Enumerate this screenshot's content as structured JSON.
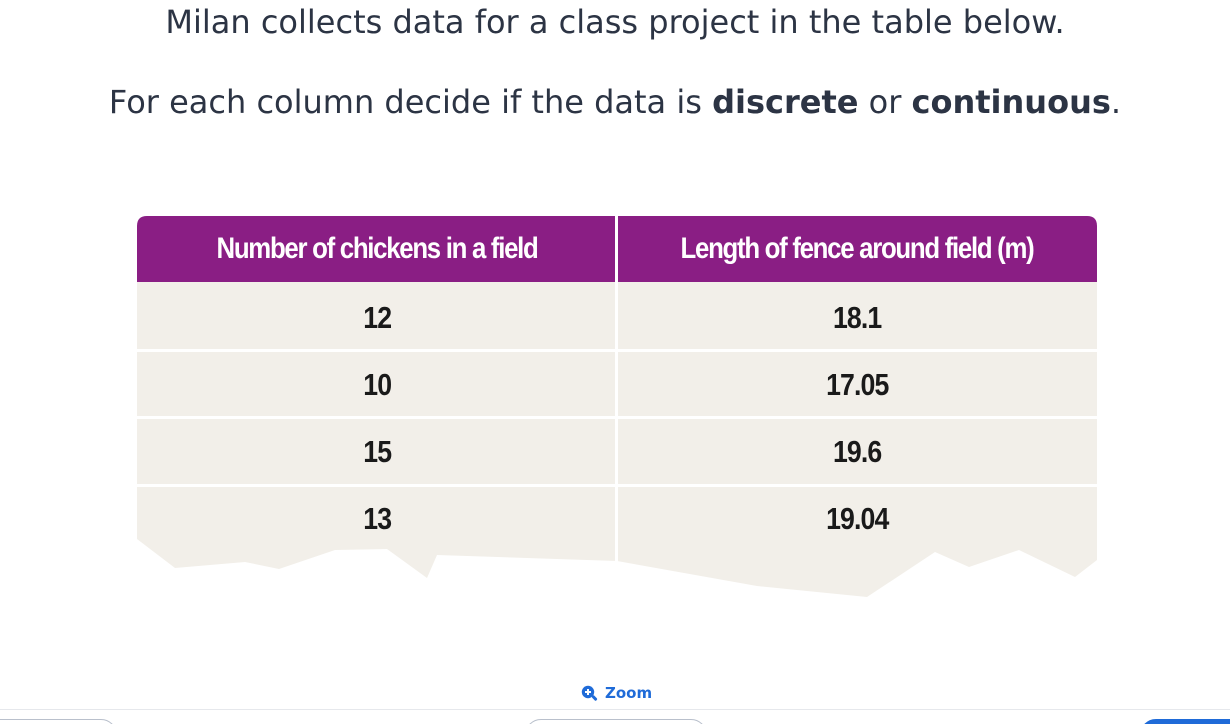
{
  "question": {
    "line1": "Milan collects data for a class project in the table below.",
    "line2_prefix": "For each column decide if the data is ",
    "line2_bold1": "discrete",
    "line2_middle": " or ",
    "line2_bold2": "continuous",
    "line2_suffix": "."
  },
  "table": {
    "header_color": "#8a1e84",
    "row_color": "#f2efe9",
    "headers": [
      "Number of  chickens in a field",
      "Length of fence around field (m)"
    ],
    "rows": [
      [
        "12",
        "18.1"
      ],
      [
        "10",
        "17.05"
      ],
      [
        "15",
        "19.6"
      ],
      [
        "13",
        "19.04"
      ]
    ]
  },
  "footer": {
    "zoom_label": "Zoom",
    "zoom_icon": "zoom-in-icon",
    "accent": "#1f6bd8"
  }
}
